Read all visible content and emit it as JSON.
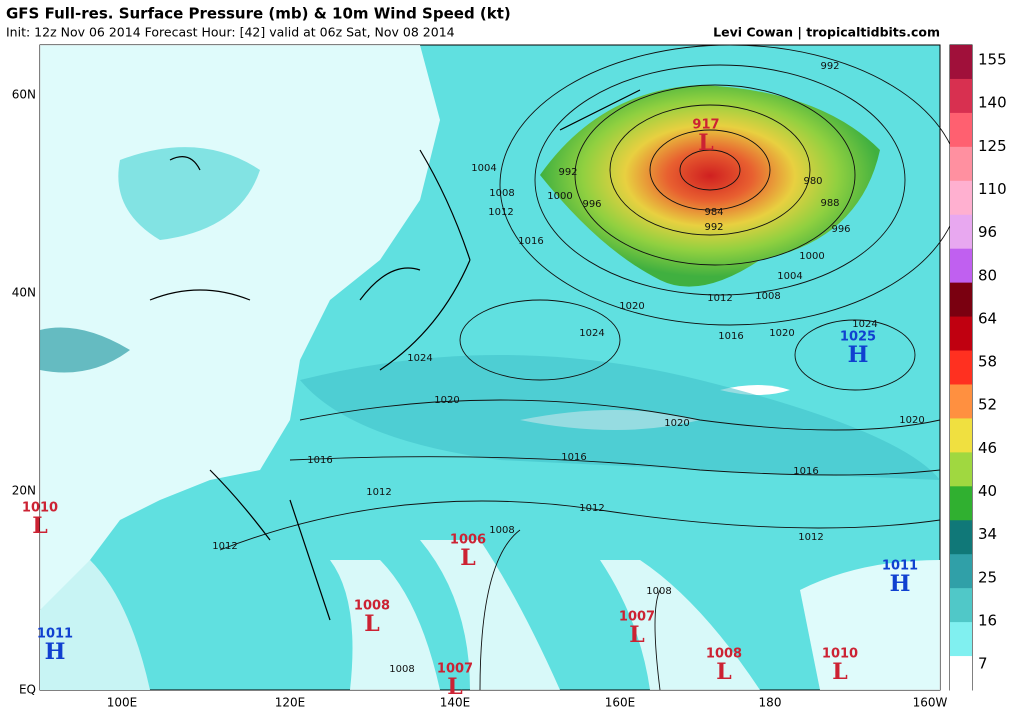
{
  "header": {
    "title": "GFS Full-res. Surface Pressure (mb) & 10m Wind Speed (kt)",
    "subtitle": "Init: 12z Nov 06 2014 Forecast Hour: [42] valid at 06z Sat, Nov 08 2014",
    "credit": "Levi Cowan | tropicaltidbits.com"
  },
  "map": {
    "lat_labels": [
      "60N",
      "40N",
      "20N",
      "EQ"
    ],
    "lon_labels": [
      "100E",
      "120E",
      "140E",
      "160E",
      "180",
      "160W"
    ],
    "centers": [
      {
        "pressure": "917",
        "type": "L"
      },
      {
        "pressure": "1025",
        "type": "H"
      },
      {
        "pressure": "1010",
        "type": "L"
      },
      {
        "pressure": "1006",
        "type": "L"
      },
      {
        "pressure": "1008",
        "type": "L"
      },
      {
        "pressure": "1011",
        "type": "H"
      },
      {
        "pressure": "1011",
        "type": "H"
      },
      {
        "pressure": "1007",
        "type": "L"
      },
      {
        "pressure": "1007",
        "type": "L"
      },
      {
        "pressure": "1008",
        "type": "L"
      },
      {
        "pressure": "1010",
        "type": "L"
      }
    ],
    "contour_labels": [
      "1004",
      "1008",
      "1012",
      "1016",
      "1000",
      "996",
      "992",
      "984",
      "992",
      "996",
      "1000",
      "1004",
      "1008",
      "1012",
      "1016",
      "1020",
      "1024",
      "1020",
      "1024",
      "1024",
      "1020",
      "1020",
      "1020",
      "1016",
      "1016",
      "1016",
      "1012",
      "1012",
      "1012",
      "1012",
      "1008",
      "1008",
      "1008",
      "992",
      "988",
      "980"
    ]
  },
  "colorbar": {
    "labels": [
      "155",
      "140",
      "125",
      "110",
      "96",
      "80",
      "64",
      "58",
      "52",
      "46",
      "40",
      "34",
      "25",
      "16",
      "7"
    ],
    "colors": [
      "#a0103a",
      "#d83050",
      "#ff6070",
      "#ff90a0",
      "#ffb0d0",
      "#e8a8f0",
      "#c060f0",
      "#7a0010",
      "#c00010",
      "#ff3020",
      "#ff9040",
      "#f0e040",
      "#a0d840",
      "#30b030",
      "#107878",
      "#30a0a8",
      "#50c8c8",
      "#80f0f0",
      "#ffffff"
    ]
  }
}
